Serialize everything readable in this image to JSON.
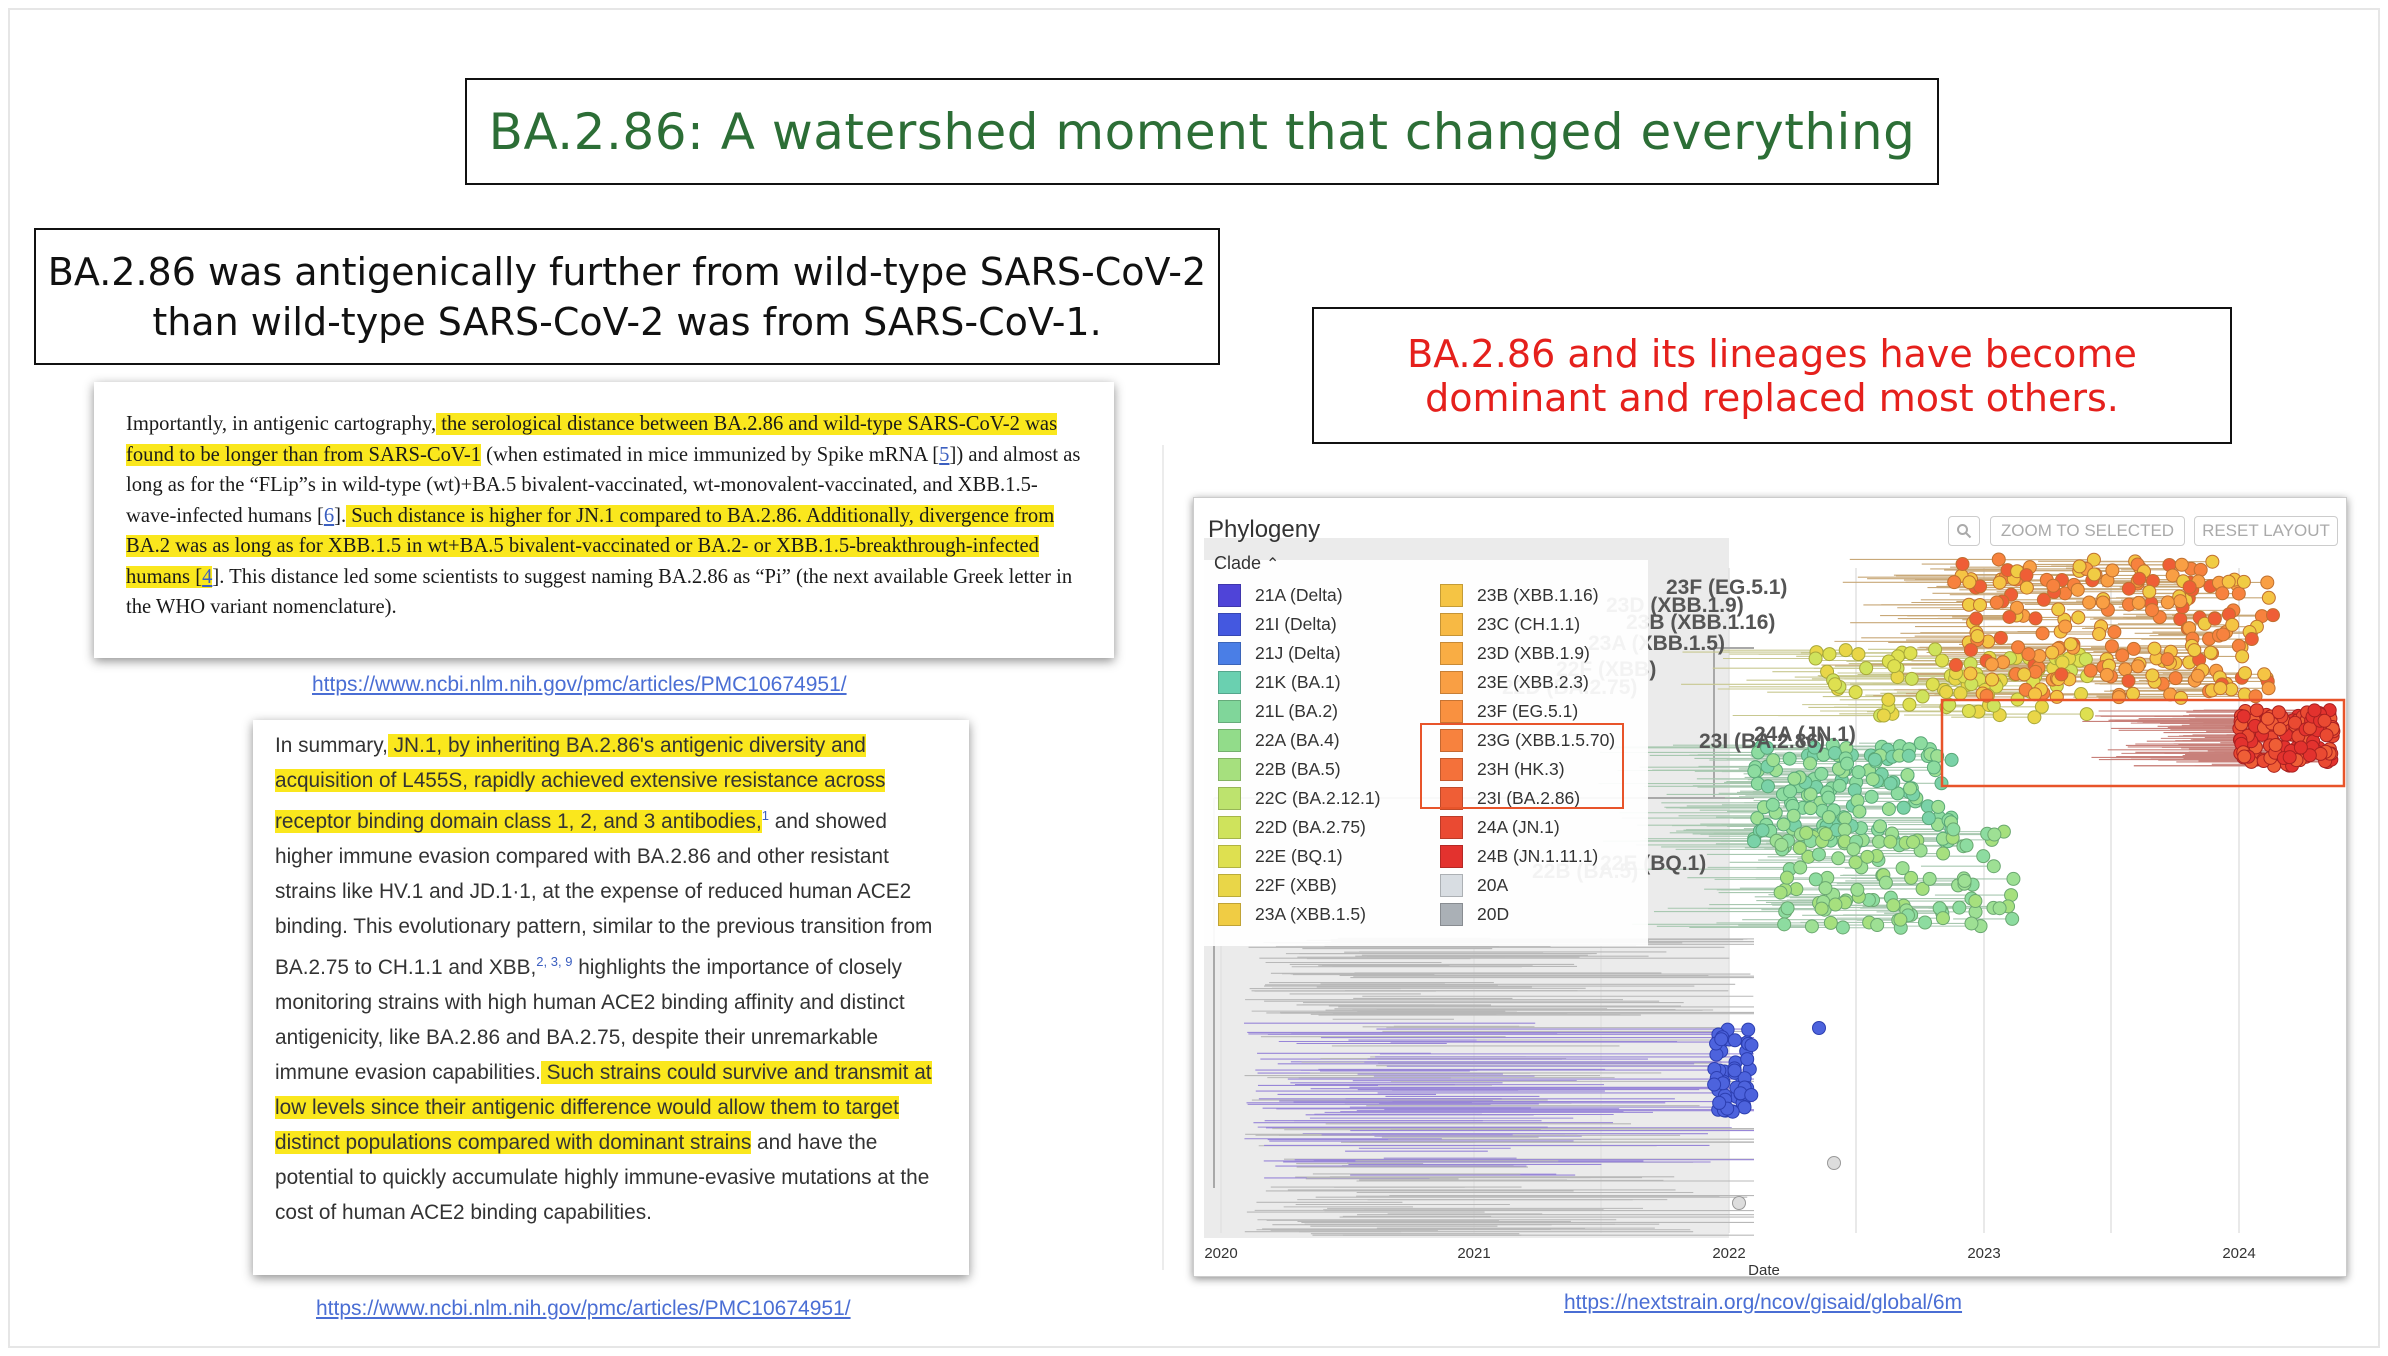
{
  "title": "BA.2.86: A watershed moment that changed everything",
  "left_caption": "BA.2.86 was antigenically further from wild-type SARS-CoV-2 than wild-type SARS-CoV-2 was from SARS-CoV-1.",
  "right_caption": "BA.2.86 and its lineages have become dominant and replaced most others.",
  "excerpt1": {
    "t1": "Importantly, in antigenic cartography,",
    "t2": " the serological distance between BA.2.86 and wild-type SARS-CoV-2 was found to be longer than from SARS-CoV-1",
    "t3": " (when estimated in mice immunized by Spike mRNA [",
    "ref5": "5",
    "t4": "]) and almost as long as for the “FLip”s in wild-type (wt)+BA.5 bivalent-vaccinated, wt-monovalent-vaccinated, and XBB.1.5-wave-infected humans [",
    "ref6": "6",
    "t5": "].",
    "t6": " Such distance is higher for JN.1 compared to BA.2.86. Additionally, divergence from BA.2 was as long as for XBB.1.5 in wt+BA.5 bivalent-vaccinated or BA.2- or XBB.1.5-breakthrough-infected humans [",
    "ref4": "4",
    "t7": "]. This distance led some scientists to suggest naming BA.2.86 as “Pi” (the next available Greek letter in the WHO variant nomenclature)."
  },
  "link1": "https://www.ncbi.nlm.nih.gov/pmc/articles/PMC10674951/",
  "excerpt2": {
    "t1": "In summary,",
    "t2": " JN.1, by inheriting BA.2.86's antigenic diversity and acquisition of L455S, rapidly achieved extensive resistance across receptor binding domain class 1, 2, and 3 antibodies,",
    "sup1": "1",
    "t3": " and showed higher immune evasion compared with BA.2.86 and other resistant strains like HV.1 and JD.1·1, at the expense of reduced human ACE2 binding. This evolutionary pattern, similar to the previous transition from BA.2.75 to CH.1.1 and XBB,",
    "sup2": "2, 3, 9",
    "t4": " highlights the importance of closely monitoring strains with high human ACE2 binding affinity and distinct antigenicity, like BA.2.86 and BA.2.75, despite their unremarkable immune evasion capabilities.",
    "t5": " Such strains could survive and transmit at low levels since their antigenic difference would allow them to target distinct populations compared with dominant strains",
    "t6": " and have the potential to quickly accumulate highly immune-evasive mutations at the cost of human ACE2 binding capabilities."
  },
  "link2": "https://www.ncbi.nlm.nih.gov/pmc/articles/PMC10674951/",
  "link3": "https://nextstrain.org/ncov/gisaid/global/6m",
  "nextstrain": {
    "panel_title": "Phylogeny",
    "zoom_icon": "search-icon",
    "zoom_button": "ZOOM TO SELECTED",
    "reset_button": "RESET LAYOUT",
    "clade_label": "Clade",
    "legend_col1": [
      {
        "label": "21A (Delta)",
        "color": "#4f44d8"
      },
      {
        "label": "21I (Delta)",
        "color": "#4458e0"
      },
      {
        "label": "21J (Delta)",
        "color": "#4a7ee6"
      },
      {
        "label": "21K (BA.1)",
        "color": "#6ad0b0"
      },
      {
        "label": "21L (BA.2)",
        "color": "#80d69a"
      },
      {
        "label": "22A (BA.4)",
        "color": "#92dc8a"
      },
      {
        "label": "22B (BA.5)",
        "color": "#a6e07e"
      },
      {
        "label": "22C (BA.2.12.1)",
        "color": "#bde36e"
      },
      {
        "label": "22D (BA.2.75)",
        "color": "#cfe35c"
      },
      {
        "label": "22E (BQ.1)",
        "color": "#dee050"
      },
      {
        "label": "22F (XBB)",
        "color": "#e9d648"
      },
      {
        "label": "23A (XBB.1.5)",
        "color": "#f0cc44"
      }
    ],
    "legend_col2": [
      {
        "label": "23B (XBB.1.16)",
        "color": "#f5c444"
      },
      {
        "label": "23C (CH.1.1)",
        "color": "#f7b944"
      },
      {
        "label": "23D (XBB.1.9)",
        "color": "#f9ad44"
      },
      {
        "label": "23E (XBB.2.3)",
        "color": "#f99f44"
      },
      {
        "label": "23F (EG.5.1)",
        "color": "#f99140"
      },
      {
        "label": "23G (XBB.1.5.70)",
        "color": "#f7823e"
      },
      {
        "label": "23H (HK.3)",
        "color": "#f4713a"
      },
      {
        "label": "23I (BA.2.86)",
        "color": "#ef5e36"
      },
      {
        "label": "24A (JN.1)",
        "color": "#ea4a32"
      },
      {
        "label": "24B (JN.1.11.1)",
        "color": "#e3322e"
      },
      {
        "label": "20A",
        "color": "#d8dde2"
      },
      {
        "label": "20D",
        "color": "#aab0b6"
      }
    ],
    "tree_labels": [
      "23F (EG.5.1)",
      "23D (XBB.1.9)",
      "23B (XBB.1.16)",
      "23A (XBB.1.5)",
      "22F (XBB)",
      "22D (BA.2.75)",
      "24A (JN.1)",
      "23I (BA.2.86)",
      "22E (BQ.1)",
      "22B (BA.5)"
    ],
    "axis_ticks": [
      "2020",
      "2021",
      "2022",
      "2023",
      "2024"
    ],
    "axis_label": "Date"
  }
}
